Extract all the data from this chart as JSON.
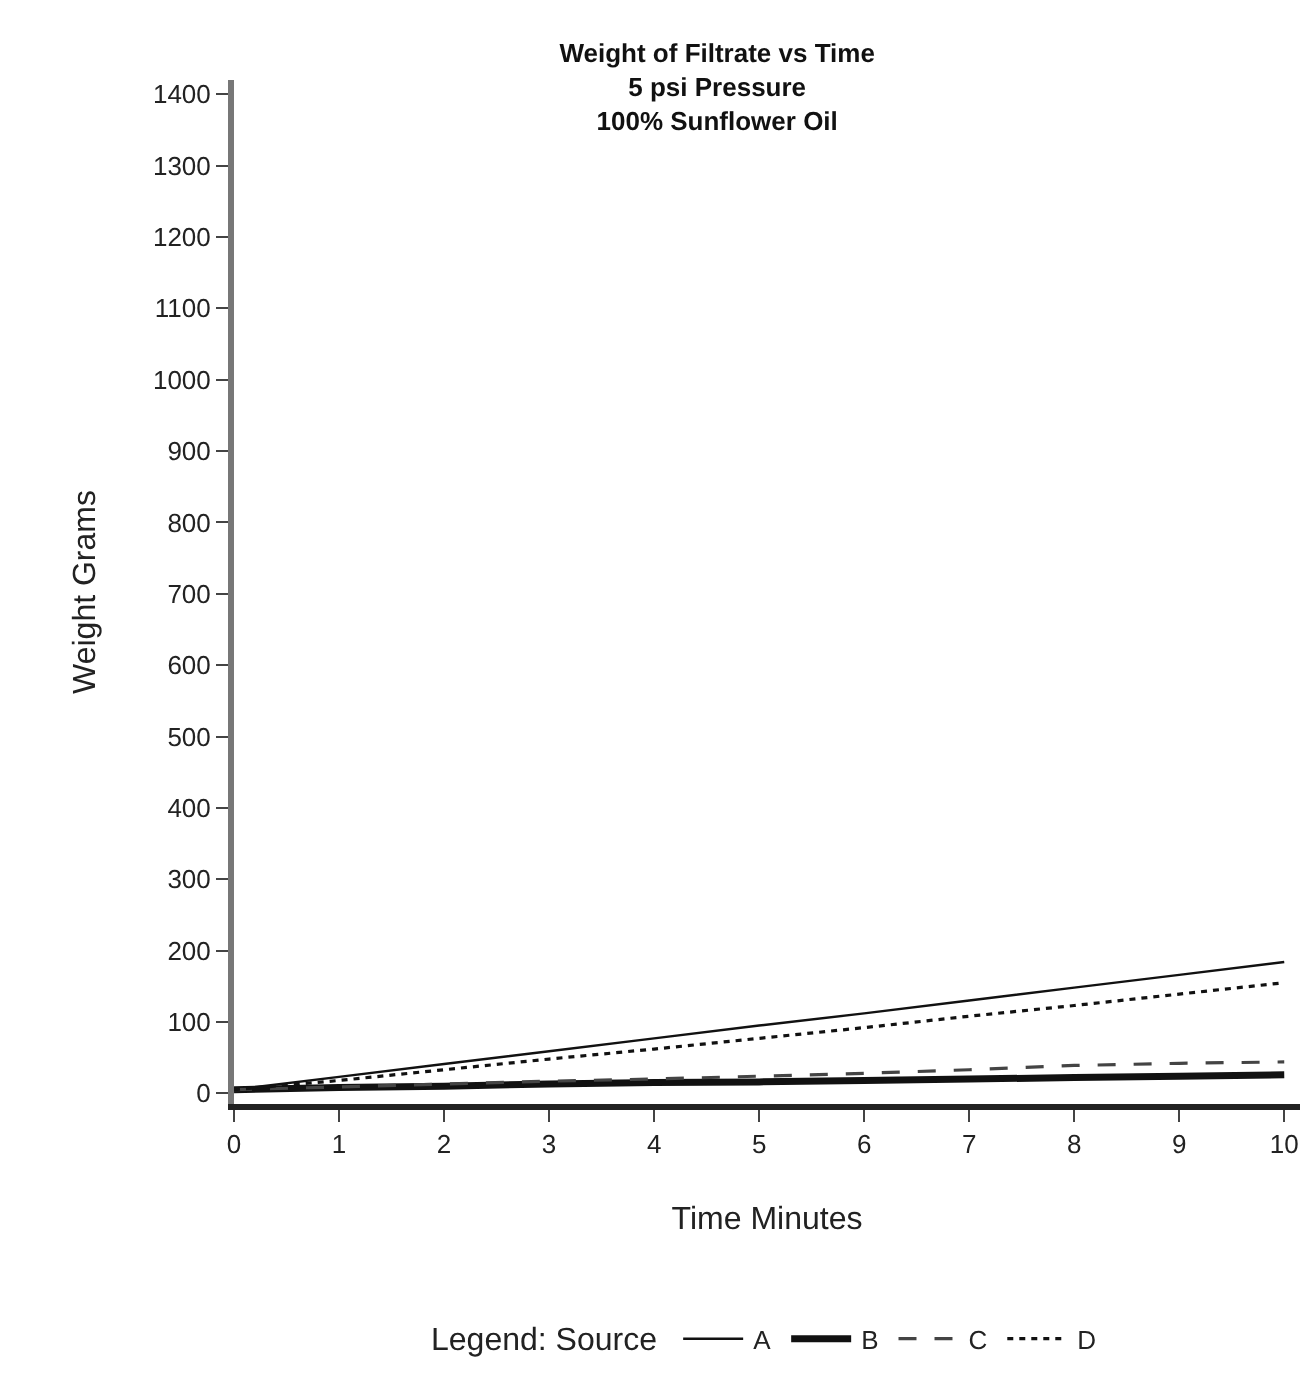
{
  "chart_data": {
    "type": "line",
    "title": "Weight of Filtrate vs Time\n5 psi Pressure\n100% Sunflower Oil",
    "xlabel": "Time Minutes",
    "ylabel": "Weight Grams",
    "legend_title": "Legend: Source",
    "x": [
      0,
      1,
      2,
      3,
      4,
      5,
      6,
      7,
      8,
      9,
      10
    ],
    "series": [
      {
        "name": "A",
        "color": "#111111",
        "line_style": "solid",
        "values": [
          5,
          23,
          41,
          59,
          77,
          95,
          112,
          130,
          148,
          166,
          184
        ]
      },
      {
        "name": "B",
        "color": "#111111",
        "line_style": "solid",
        "values": [
          5,
          8,
          10,
          13,
          15,
          16,
          18,
          20,
          22,
          24,
          26
        ]
      },
      {
        "name": "C",
        "color": "#444444",
        "line_style": "dashed",
        "values": [
          5,
          9,
          13,
          17,
          20,
          24,
          28,
          33,
          39,
          42,
          44
        ]
      },
      {
        "name": "D",
        "color": "#111111",
        "line_style": "dotted",
        "values": [
          5,
          18,
          33,
          48,
          62,
          77,
          92,
          108,
          123,
          139,
          155
        ]
      }
    ],
    "xlim": [
      0,
      10.15
    ],
    "ylim": [
      -15,
      1420
    ],
    "xticks": [
      0,
      1,
      2,
      3,
      4,
      5,
      6,
      7,
      8,
      9,
      10
    ],
    "yticks": [
      0,
      100,
      200,
      300,
      400,
      500,
      600,
      700,
      800,
      900,
      1000,
      1100,
      1200,
      1300,
      1400
    ],
    "grid": false,
    "legend": "bottom",
    "marker": "none"
  }
}
